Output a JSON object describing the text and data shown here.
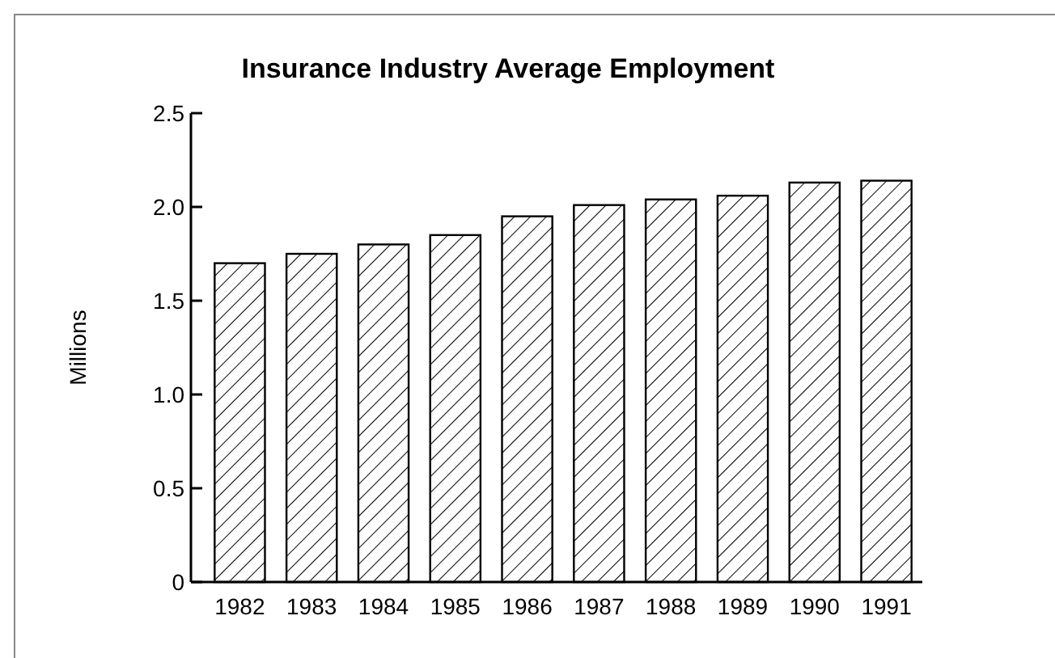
{
  "chart_data": {
    "type": "bar",
    "title": "Insurance Industry Average Employment",
    "ylabel": "Millions",
    "categories": [
      "1982",
      "1983",
      "1984",
      "1985",
      "1986",
      "1987",
      "1988",
      "1989",
      "1990",
      "1991"
    ],
    "values": [
      1.7,
      1.75,
      1.8,
      1.85,
      1.95,
      2.01,
      2.04,
      2.06,
      2.13,
      2.14
    ],
    "color": "#000000",
    "ylim": [
      0,
      2.5
    ],
    "yticks": [
      0,
      0.5,
      "1.0",
      1.5,
      "2.0",
      2.5
    ],
    "grid": false
  }
}
